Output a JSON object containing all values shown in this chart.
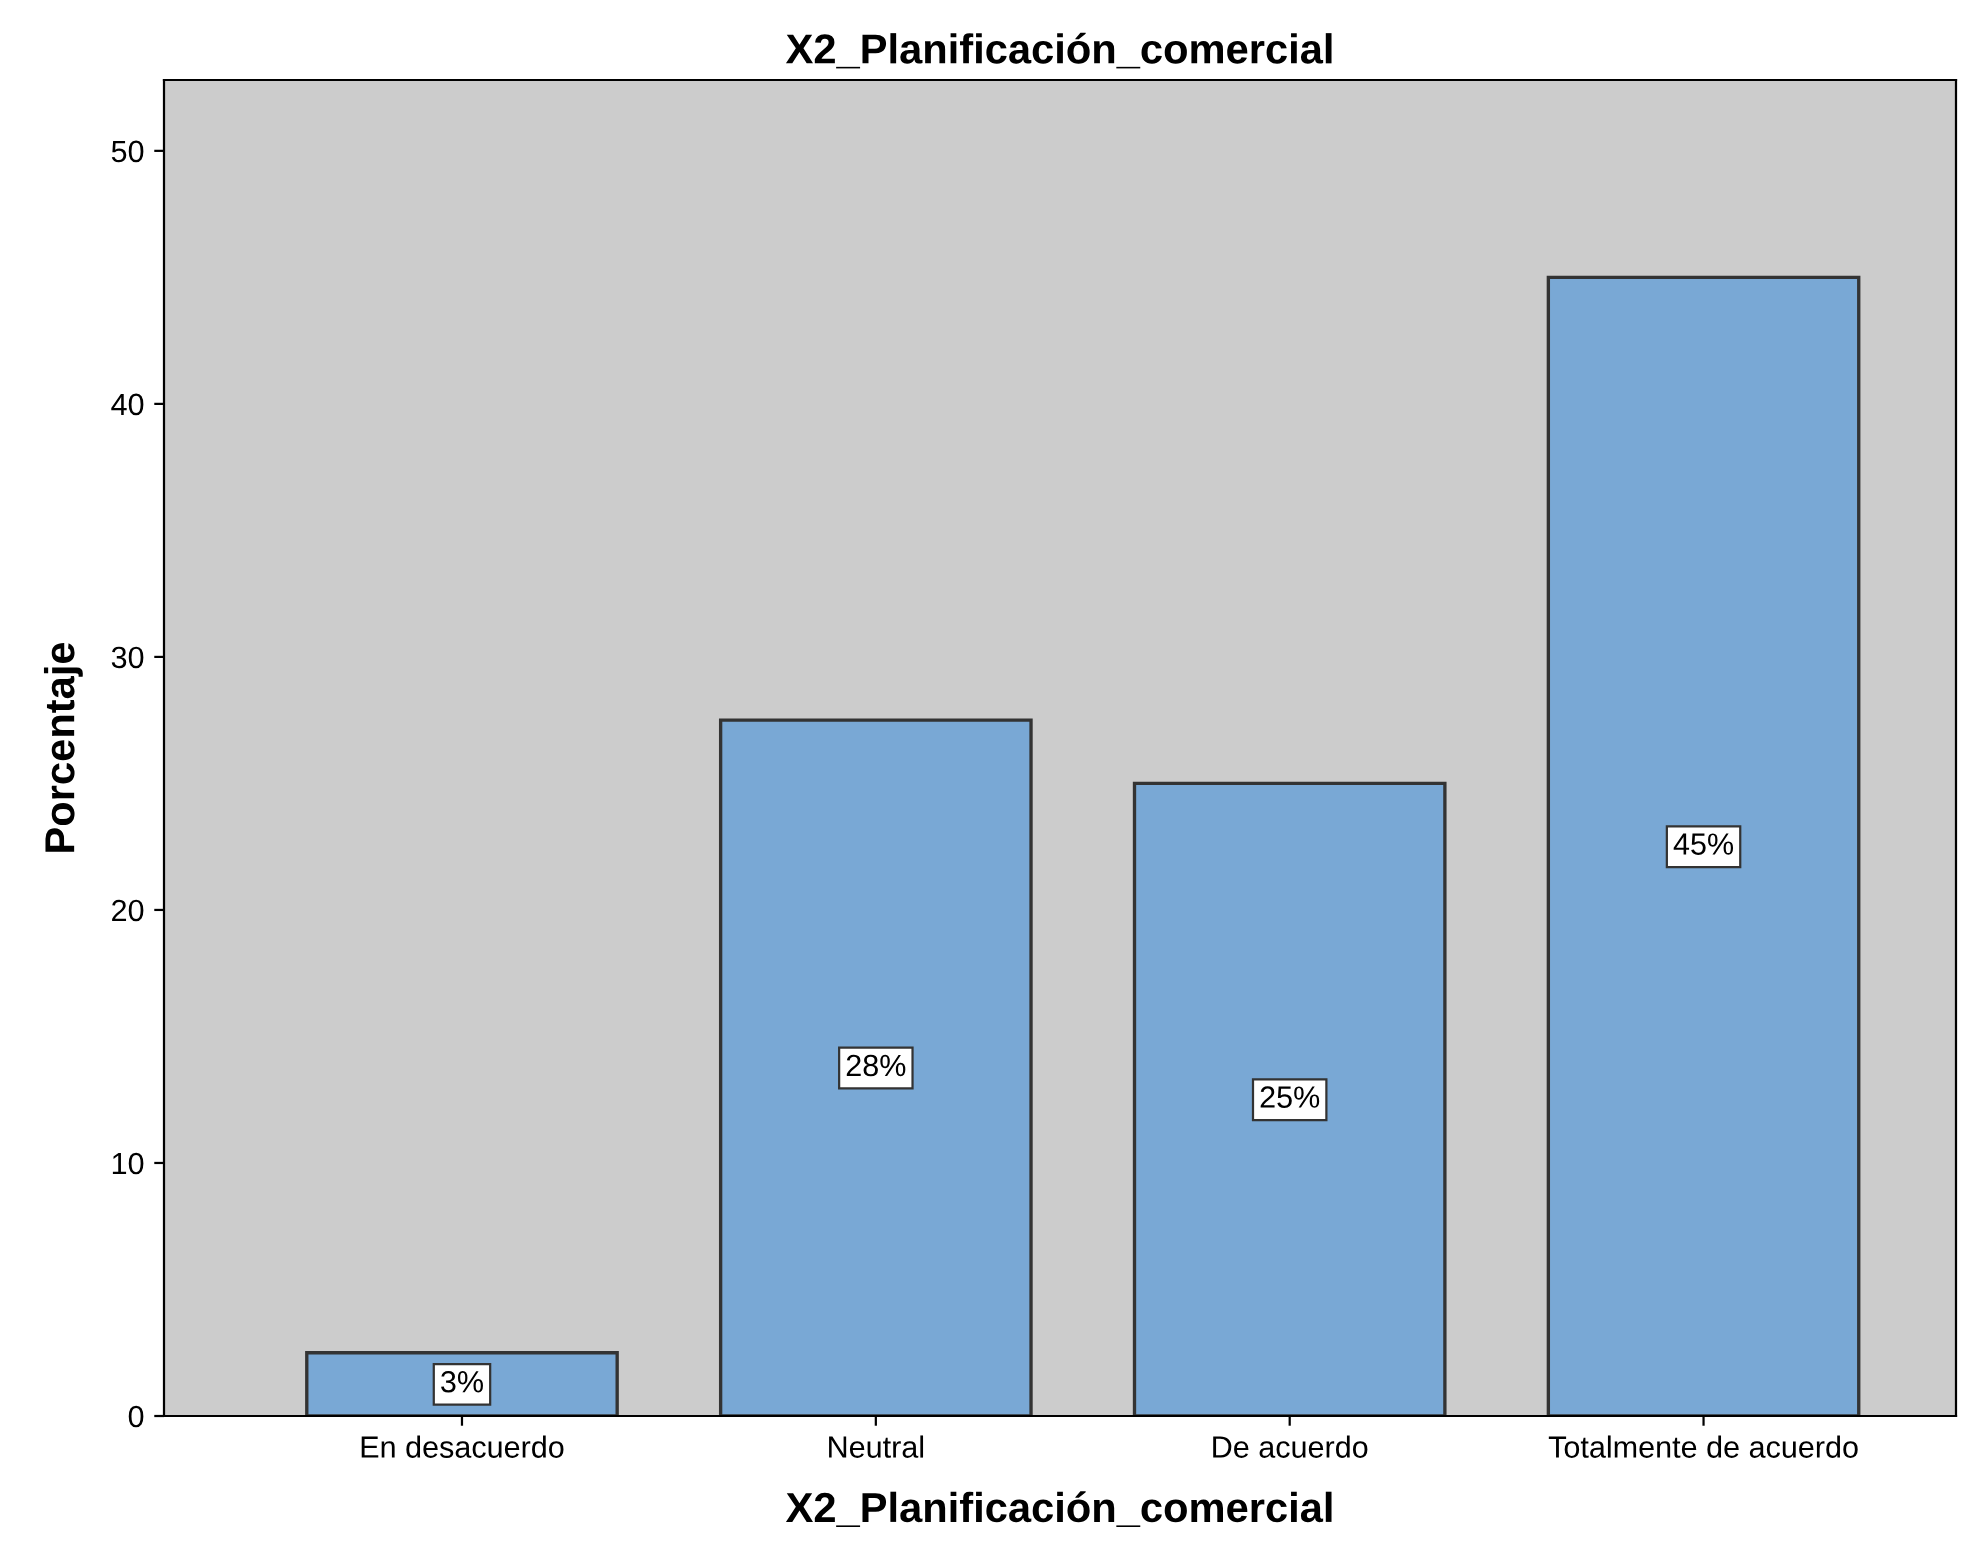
{
  "chart_data": {
    "type": "bar",
    "title": "X2_Planificación_comercial",
    "xlabel": "X2_Planificación_comercial",
    "ylabel": "Porcentaje",
    "categories": [
      "En desacuerdo",
      "Neutral",
      "De acuerdo",
      "Totalmente de acuerdo"
    ],
    "values": [
      2.5,
      27.5,
      25,
      45
    ],
    "value_labels": [
      "3%",
      "28%",
      "25%",
      "45%"
    ],
    "color": "#79a8d5",
    "ylim": [
      0,
      52.8
    ],
    "yticks": [
      0,
      10,
      20,
      30,
      40,
      50
    ],
    "grid": false,
    "legend": false
  }
}
